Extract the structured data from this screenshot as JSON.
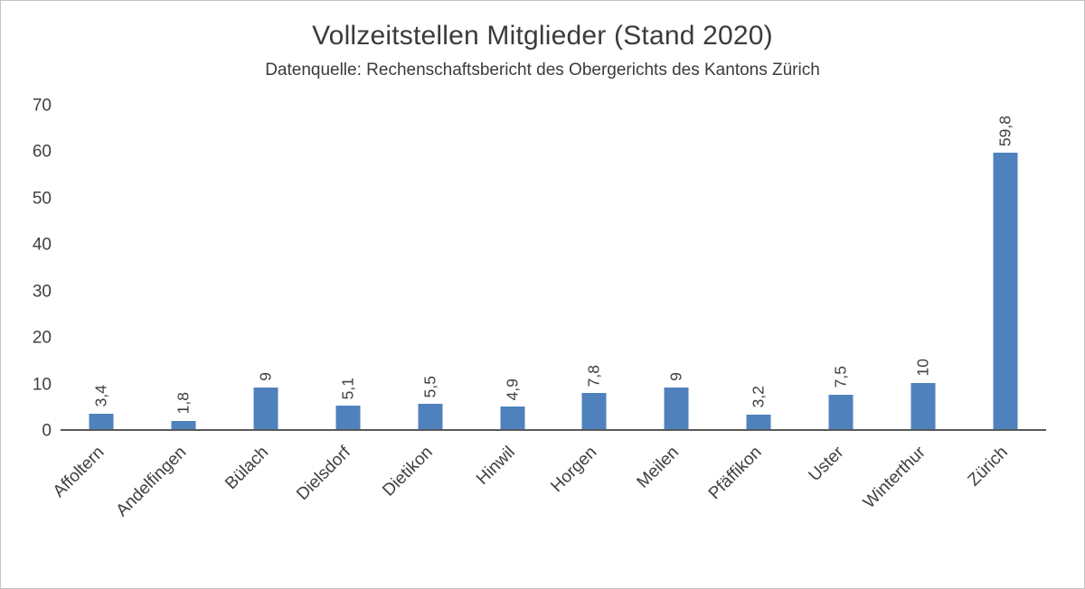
{
  "chart": {
    "title": "Vollzeitstellen Mitglieder (Stand 2020)",
    "subtitle": "Datenquelle: Rechenschaftsbericht des Obergerichts des Kantons Zürich"
  },
  "chart_data": {
    "type": "bar",
    "title": "Vollzeitstellen Mitglieder (Stand 2020)",
    "subtitle": "Datenquelle: Rechenschaftsbericht des Obergerichts des Kantons Zürich",
    "categories": [
      "Affoltern",
      "Andelfingen",
      "Bülach",
      "Dielsdorf",
      "Dietikon",
      "Hinwil",
      "Horgen",
      "Meilen",
      "Pfäffikon",
      "Uster",
      "Winterthur",
      "Zürich"
    ],
    "values": [
      3.4,
      1.8,
      9,
      5.1,
      5.5,
      4.9,
      7.8,
      9,
      3.2,
      7.5,
      10,
      59.8
    ],
    "value_labels": [
      "3,4",
      "1,8",
      "9",
      "5,1",
      "5,5",
      "4,9",
      "7,8",
      "9",
      "3,2",
      "7,5",
      "10",
      "59,8"
    ],
    "xlabel": "",
    "ylabel": "",
    "ylim": [
      0,
      70
    ],
    "yticks": [
      0,
      10,
      20,
      30,
      40,
      50,
      60,
      70
    ],
    "bar_color": "#4F81BD",
    "grid": false,
    "legend": null,
    "data_label_rotation_deg": 90,
    "x_label_rotation_deg": 45
  }
}
